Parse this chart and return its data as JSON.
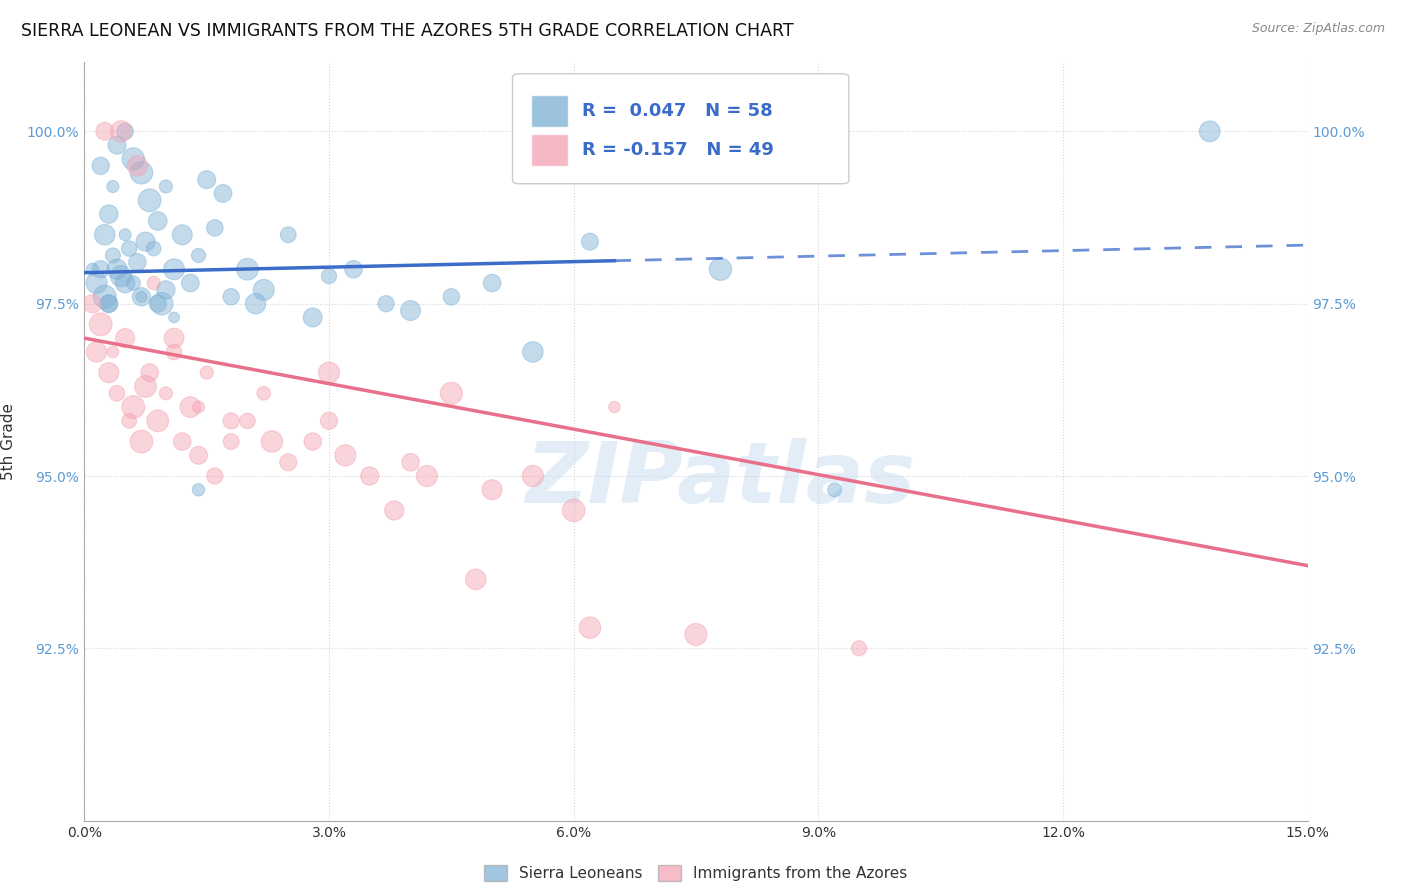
{
  "title": "SIERRA LEONEAN VS IMMIGRANTS FROM THE AZORES 5TH GRADE CORRELATION CHART",
  "source": "Source: ZipAtlas.com",
  "ylabel": "5th Grade",
  "xlim": [
    0.0,
    15.0
  ],
  "ylim": [
    90.0,
    101.0
  ],
  "yticks": [
    92.5,
    95.0,
    97.5,
    100.0
  ],
  "ytick_labels": [
    "92.5%",
    "95.0%",
    "97.5%",
    "100.0%"
  ],
  "xticks": [
    0.0,
    3.0,
    6.0,
    9.0,
    12.0,
    15.0
  ],
  "xtick_labels": [
    "0.0%",
    "3.0%",
    "6.0%",
    "9.0%",
    "12.0%",
    "15.0%"
  ],
  "legend_r_blue": "0.047",
  "legend_n_blue": "58",
  "legend_r_pink": "-0.157",
  "legend_n_pink": "49",
  "blue_color": "#7BAFD4",
  "pink_color": "#F4A0B0",
  "blue_line_color": "#3B6CC9",
  "pink_line_color": "#E8708A",
  "watermark": "ZIPatlas",
  "watermark_color": "#B8D4EC",
  "background_color": "#FFFFFF",
  "grid_color": "#CCCCCC",
  "blue_scatter_x": [
    0.1,
    0.15,
    0.2,
    0.25,
    0.25,
    0.3,
    0.3,
    0.35,
    0.35,
    0.4,
    0.4,
    0.45,
    0.5,
    0.5,
    0.55,
    0.6,
    0.6,
    0.65,
    0.7,
    0.7,
    0.75,
    0.8,
    0.85,
    0.9,
    0.95,
    1.0,
    1.0,
    1.1,
    1.2,
    1.3,
    1.4,
    1.5,
    1.6,
    1.7,
    1.8,
    2.0,
    2.2,
    2.5,
    2.8,
    3.0,
    3.3,
    3.7,
    4.0,
    4.5,
    5.0,
    5.5,
    6.2,
    7.8,
    9.2,
    13.8,
    0.2,
    0.3,
    0.5,
    0.7,
    0.9,
    1.1,
    1.4,
    2.1
  ],
  "blue_scatter_y": [
    98.0,
    97.8,
    99.5,
    98.5,
    97.6,
    98.8,
    97.5,
    99.2,
    98.2,
    99.8,
    98.0,
    97.9,
    100.0,
    98.5,
    98.3,
    99.6,
    97.8,
    98.1,
    99.4,
    97.6,
    98.4,
    99.0,
    98.3,
    98.7,
    97.5,
    99.2,
    97.7,
    98.0,
    98.5,
    97.8,
    98.2,
    99.3,
    98.6,
    99.1,
    97.6,
    98.0,
    97.7,
    98.5,
    97.3,
    97.9,
    98.0,
    97.5,
    97.4,
    97.6,
    97.8,
    96.8,
    98.4,
    98.0,
    94.8,
    100.0,
    98.0,
    97.5,
    97.8,
    97.6,
    97.5,
    97.3,
    94.8,
    97.5
  ],
  "pink_scatter_x": [
    0.1,
    0.15,
    0.2,
    0.3,
    0.35,
    0.4,
    0.5,
    0.55,
    0.6,
    0.7,
    0.75,
    0.8,
    0.9,
    1.0,
    1.1,
    1.2,
    1.3,
    1.4,
    1.5,
    1.6,
    1.8,
    2.0,
    2.2,
    2.5,
    2.8,
    3.0,
    3.2,
    3.5,
    4.0,
    4.2,
    4.5,
    5.0,
    5.5,
    6.0,
    6.5,
    7.5,
    9.5,
    0.25,
    0.45,
    0.65,
    0.85,
    1.1,
    1.4,
    1.8,
    2.3,
    3.0,
    3.8,
    4.8,
    6.2
  ],
  "pink_scatter_y": [
    97.5,
    96.8,
    97.2,
    96.5,
    96.8,
    96.2,
    97.0,
    95.8,
    96.0,
    95.5,
    96.3,
    96.5,
    95.8,
    96.2,
    96.8,
    95.5,
    96.0,
    95.3,
    96.5,
    95.0,
    95.5,
    95.8,
    96.2,
    95.2,
    95.5,
    96.5,
    95.3,
    95.0,
    95.2,
    95.0,
    96.2,
    94.8,
    95.0,
    94.5,
    96.0,
    92.7,
    92.5,
    100.0,
    100.0,
    99.5,
    97.8,
    97.0,
    96.0,
    95.8,
    95.5,
    95.8,
    94.5,
    93.5,
    92.8
  ],
  "blue_line_x": [
    0.0,
    15.0
  ],
  "blue_line_y": [
    97.95,
    98.35
  ],
  "blue_solid_end": 6.5,
  "pink_line_x": [
    0.0,
    15.0
  ],
  "pink_line_y": [
    97.0,
    93.7
  ]
}
